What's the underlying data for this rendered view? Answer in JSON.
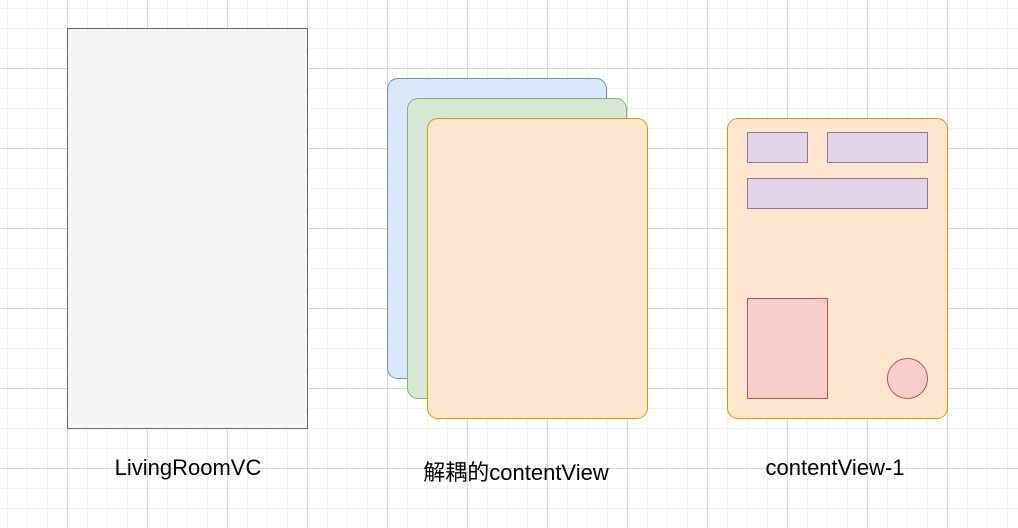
{
  "diagram": {
    "labels": {
      "living_room_vc": "LivingRoomVC",
      "decoupled_content_view": "解耦的contentView",
      "content_view_1": "contentView-1"
    }
  },
  "colors": {
    "vc_fill": "#f5f5f5",
    "vc_stroke": "#666666",
    "blue_fill": "#dae8fc",
    "blue_stroke": "#6c8ebf",
    "green_fill": "#d5e8d4",
    "green_stroke": "#82b366",
    "orange_fill": "#ffe6cc",
    "orange_stroke": "#d79b00",
    "purple_fill": "#e1d5e7",
    "purple_stroke": "#9673a6",
    "red_fill": "#f8cecc",
    "red_stroke": "#b85450"
  }
}
